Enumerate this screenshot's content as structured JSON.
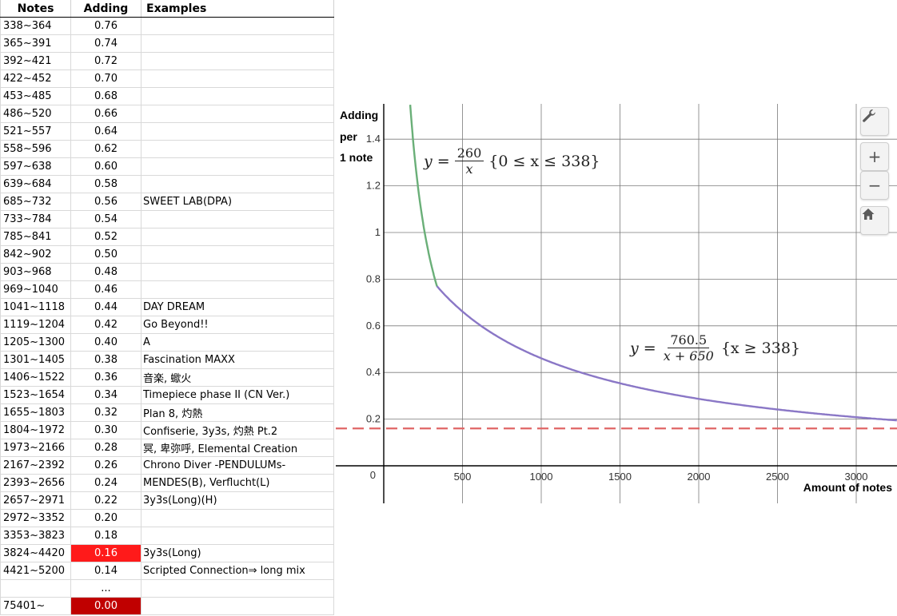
{
  "table": {
    "headers": {
      "notes": "Notes",
      "adding": "Adding",
      "examples": "Examples"
    },
    "rows": [
      {
        "notes": "338~364",
        "adding": "0.76",
        "examples": ""
      },
      {
        "notes": "365~391",
        "adding": "0.74",
        "examples": ""
      },
      {
        "notes": "392~421",
        "adding": "0.72",
        "examples": ""
      },
      {
        "notes": "422~452",
        "adding": "0.70",
        "examples": ""
      },
      {
        "notes": "453~485",
        "adding": "0.68",
        "examples": ""
      },
      {
        "notes": "486~520",
        "adding": "0.66",
        "examples": ""
      },
      {
        "notes": "521~557",
        "adding": "0.64",
        "examples": ""
      },
      {
        "notes": "558~596",
        "adding": "0.62",
        "examples": ""
      },
      {
        "notes": "597~638",
        "adding": "0.60",
        "examples": ""
      },
      {
        "notes": "639~684",
        "adding": "0.58",
        "examples": ""
      },
      {
        "notes": "685~732",
        "adding": "0.56",
        "examples": "SWEET LAB(DPA)"
      },
      {
        "notes": "733~784",
        "adding": "0.54",
        "examples": ""
      },
      {
        "notes": "785~841",
        "adding": "0.52",
        "examples": ""
      },
      {
        "notes": "842~902",
        "adding": "0.50",
        "examples": ""
      },
      {
        "notes": "903~968",
        "adding": "0.48",
        "examples": ""
      },
      {
        "notes": "969~1040",
        "adding": "0.46",
        "examples": ""
      },
      {
        "notes": "1041~1118",
        "adding": "0.44",
        "examples": "DAY DREAM"
      },
      {
        "notes": "1119~1204",
        "adding": "0.42",
        "examples": "Go Beyond!!"
      },
      {
        "notes": "1205~1300",
        "adding": "0.40",
        "examples": "A"
      },
      {
        "notes": "1301~1405",
        "adding": "0.38",
        "examples": "Fascination MAXX"
      },
      {
        "notes": "1406~1522",
        "adding": "0.36",
        "examples": "音楽, 蠍火"
      },
      {
        "notes": "1523~1654",
        "adding": "0.34",
        "examples": "Timepiece phase II (CN Ver.)"
      },
      {
        "notes": "1655~1803",
        "adding": "0.32",
        "examples": "Plan 8, 灼熱"
      },
      {
        "notes": "1804~1972",
        "adding": "0.30",
        "examples": "Confiserie, 3y3s, 灼熱 Pt.2"
      },
      {
        "notes": "1973~2166",
        "adding": "0.28",
        "examples": "冥, 卑弥呼, Elemental Creation"
      },
      {
        "notes": "2167~2392",
        "adding": "0.26",
        "examples": "Chrono Diver -PENDULUMs-"
      },
      {
        "notes": "2393~2656",
        "adding": "0.24",
        "examples": "MENDES(B), Verflucht(L)"
      },
      {
        "notes": "2657~2971",
        "adding": "0.22",
        "examples": "3y3s(Long)(H)"
      },
      {
        "notes": "2972~3352",
        "adding": "0.20",
        "examples": ""
      },
      {
        "notes": "3353~3823",
        "adding": "0.18",
        "examples": ""
      },
      {
        "notes": "3824~4420",
        "adding": "0.16",
        "examples": "3y3s(Long)",
        "highlight": "red"
      },
      {
        "notes": "4421~5200",
        "adding": "0.14",
        "examples": "Scripted Connection⇒ long mix"
      },
      {
        "notes": "",
        "adding": "...",
        "examples": ""
      },
      {
        "notes": "75401~",
        "adding": "0.00",
        "examples": "",
        "highlight": "dark"
      }
    ]
  },
  "graph": {
    "ylabel_lines": [
      "Adding",
      "per",
      "1 note"
    ],
    "xlabel": "Amount of notes",
    "origin_label": "0",
    "formula1": {
      "y": "y",
      "eq": "=",
      "num": "260",
      "den": "x",
      "cond": "{0 ≤ x ≤ 338}"
    },
    "formula2": {
      "y": "y",
      "eq": "=",
      "num": "760.5",
      "den": "x + 650",
      "cond": "{x ≥ 338}"
    },
    "colors": {
      "curve1": "#6aaf78",
      "curve2": "#8a77c6",
      "dashed": "#e06666",
      "grid": "#7a7a7a"
    },
    "toolbar": {
      "settings_icon": "wrench-icon",
      "zoom_in": "+",
      "zoom_out": "−",
      "home_icon": "home-icon"
    }
  },
  "chart_data": {
    "type": "line",
    "title": "",
    "xlabel": "Amount of notes",
    "ylabel": "Adding per 1 note",
    "xlim": [
      0,
      3250
    ],
    "ylim": [
      0,
      1.5
    ],
    "x_ticks": [
      500,
      1000,
      1500,
      2000,
      2500,
      3000
    ],
    "y_ticks": [
      0.2,
      0.4,
      0.6,
      0.8,
      1,
      1.2,
      1.4
    ],
    "grid": true,
    "series": [
      {
        "formula": "260/x",
        "domain": [
          0,
          338
        ],
        "x": [
          175,
          200,
          225,
          250,
          275,
          300,
          338
        ],
        "y": [
          1.486,
          1.3,
          1.156,
          1.04,
          0.945,
          0.867,
          0.769
        ]
      },
      {
        "formula": "760.5/(x+650)",
        "domain": [
          338,
          3250
        ],
        "x": [
          338,
          500,
          1000,
          1500,
          2000,
          2500,
          3000,
          3250
        ],
        "y": [
          0.77,
          0.661,
          0.461,
          0.354,
          0.287,
          0.241,
          0.208,
          0.195
        ]
      },
      {
        "style": "dashed",
        "y_constant": 0.16
      }
    ]
  }
}
